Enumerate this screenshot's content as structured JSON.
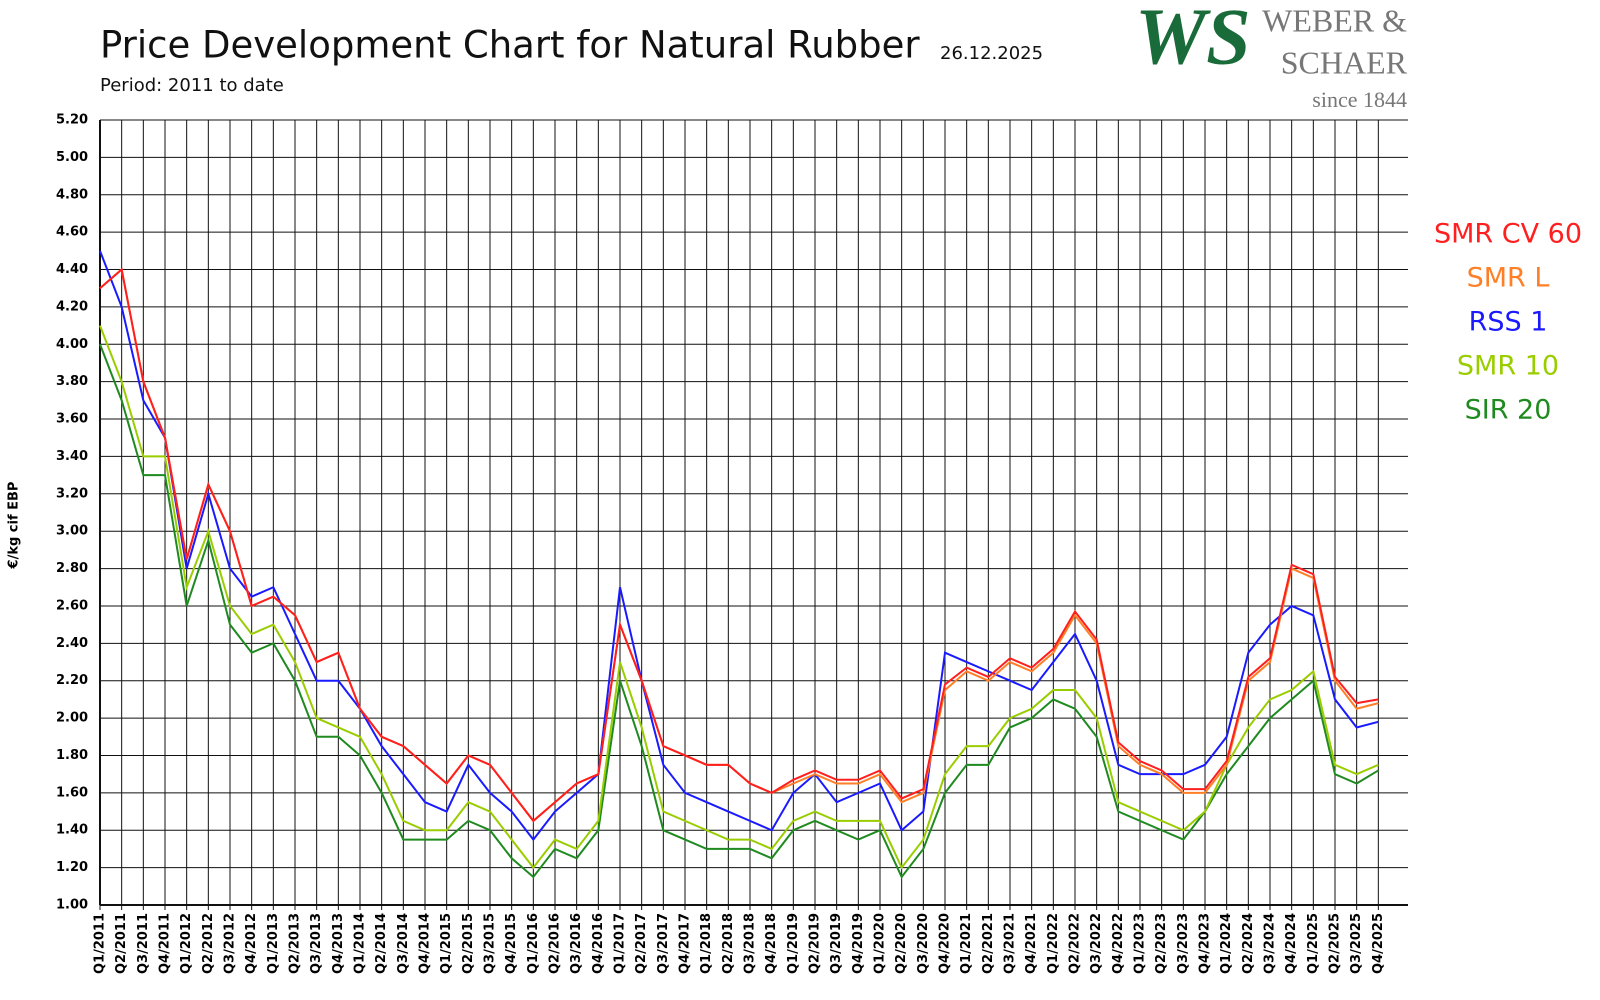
{
  "chart_data": {
    "type": "line",
    "title": "Price Development Chart for Natural Rubber",
    "date": "26.12.2025",
    "subtitle": "Period: 2011 to date",
    "y_label": "€/kg cif EBP",
    "logo": {
      "mark": "WS",
      "line1": "WEBER &",
      "line2": "SCHAER",
      "since": "since 1844"
    },
    "categories": [
      "Q1/2011",
      "Q2/2011",
      "Q3/2011",
      "Q4/2011",
      "Q1/2012",
      "Q2/2012",
      "Q3/2012",
      "Q4/2012",
      "Q1/2013",
      "Q2/2013",
      "Q3/2013",
      "Q4/2013",
      "Q1/2014",
      "Q2/2014",
      "Q3/2014",
      "Q4/2014",
      "Q1/2015",
      "Q2/2015",
      "Q3/2015",
      "Q4/2015",
      "Q1/2016",
      "Q2/2016",
      "Q3/2016",
      "Q4/2016",
      "Q1/2017",
      "Q2/2017",
      "Q3/2017",
      "Q4/2017",
      "Q1/2018",
      "Q2/2018",
      "Q3/2018",
      "Q4/2018",
      "Q1/2019",
      "Q2/2019",
      "Q3/2019",
      "Q4/2019",
      "Q1/2020",
      "Q2/2020",
      "Q3/2020",
      "Q4/2020",
      "Q1/2021",
      "Q2/2021",
      "Q3/2021",
      "Q4/2021",
      "Q1/2022",
      "Q2/2022",
      "Q3/2022",
      "Q4/2022",
      "Q1/2023",
      "Q2/2023",
      "Q3/2023",
      "Q4/2023",
      "Q1/2024",
      "Q2/2024",
      "Q3/2024",
      "Q4/2024",
      "Q1/2025",
      "Q2/2025",
      "Q3/2025",
      "Q4/2025"
    ],
    "series": [
      {
        "name": "SMR CV 60",
        "color": "#ff1f1f",
        "values": [
          4.3,
          4.4,
          3.8,
          3.5,
          2.85,
          3.25,
          3.0,
          2.6,
          2.65,
          2.55,
          2.3,
          2.35,
          2.05,
          1.9,
          1.85,
          1.75,
          1.65,
          1.8,
          1.75,
          1.6,
          1.45,
          1.55,
          1.65,
          1.7,
          2.5,
          2.2,
          1.85,
          1.8,
          1.75,
          1.75,
          1.65,
          1.6,
          1.67,
          1.72,
          1.67,
          1.67,
          1.72,
          1.57,
          1.62,
          2.18,
          2.27,
          2.22,
          2.32,
          2.27,
          2.37,
          2.57,
          2.42,
          1.87,
          1.77,
          1.72,
          1.62,
          1.62,
          1.77,
          2.22,
          2.32,
          2.82,
          2.77,
          2.22,
          2.08,
          2.1
        ]
      },
      {
        "name": "SMR L",
        "color": "#ff7f27",
        "values": [
          4.3,
          4.4,
          3.8,
          3.5,
          2.85,
          3.25,
          3.0,
          2.6,
          2.65,
          2.55,
          2.3,
          2.35,
          2.05,
          1.9,
          1.85,
          1.75,
          1.65,
          1.8,
          1.75,
          1.6,
          1.45,
          1.55,
          1.65,
          1.7,
          2.5,
          2.2,
          1.85,
          1.8,
          1.75,
          1.75,
          1.65,
          1.6,
          1.65,
          1.7,
          1.65,
          1.65,
          1.7,
          1.55,
          1.6,
          2.15,
          2.25,
          2.2,
          2.3,
          2.25,
          2.35,
          2.55,
          2.4,
          1.85,
          1.75,
          1.7,
          1.6,
          1.6,
          1.75,
          2.2,
          2.3,
          2.8,
          2.75,
          2.2,
          2.05,
          2.08
        ]
      },
      {
        "name": "RSS 1",
        "color": "#1a1aff",
        "values": [
          4.5,
          4.2,
          3.7,
          3.5,
          2.8,
          3.2,
          2.8,
          2.65,
          2.7,
          2.45,
          2.2,
          2.2,
          2.05,
          1.85,
          1.7,
          1.55,
          1.5,
          1.75,
          1.6,
          1.5,
          1.35,
          1.5,
          1.6,
          1.7,
          2.7,
          2.2,
          1.75,
          1.6,
          1.55,
          1.5,
          1.45,
          1.4,
          1.6,
          1.7,
          1.55,
          1.6,
          1.65,
          1.4,
          1.5,
          2.35,
          2.3,
          2.25,
          2.2,
          2.15,
          2.3,
          2.45,
          2.2,
          1.75,
          1.7,
          1.7,
          1.7,
          1.75,
          1.9,
          2.35,
          2.5,
          2.6,
          2.55,
          2.1,
          1.95,
          1.98
        ]
      },
      {
        "name": "SMR 10",
        "color": "#9acd00",
        "values": [
          4.1,
          3.8,
          3.4,
          3.4,
          2.7,
          3.0,
          2.6,
          2.45,
          2.5,
          2.3,
          2.0,
          1.95,
          1.9,
          1.7,
          1.45,
          1.4,
          1.4,
          1.55,
          1.5,
          1.35,
          1.2,
          1.35,
          1.3,
          1.45,
          2.3,
          1.95,
          1.5,
          1.45,
          1.4,
          1.35,
          1.35,
          1.3,
          1.45,
          1.5,
          1.45,
          1.45,
          1.45,
          1.2,
          1.35,
          1.7,
          1.85,
          1.85,
          2.0,
          2.05,
          2.15,
          2.15,
          2.0,
          1.55,
          1.5,
          1.45,
          1.4,
          1.5,
          1.75,
          1.95,
          2.1,
          2.15,
          2.25,
          1.75,
          1.7,
          1.75
        ]
      },
      {
        "name": "SIR 20",
        "color": "#1f8a1f",
        "values": [
          4.0,
          3.7,
          3.3,
          3.3,
          2.6,
          2.95,
          2.5,
          2.35,
          2.4,
          2.2,
          1.9,
          1.9,
          1.8,
          1.6,
          1.35,
          1.35,
          1.35,
          1.45,
          1.4,
          1.25,
          1.15,
          1.3,
          1.25,
          1.4,
          2.2,
          1.85,
          1.4,
          1.35,
          1.3,
          1.3,
          1.3,
          1.25,
          1.4,
          1.45,
          1.4,
          1.35,
          1.4,
          1.15,
          1.3,
          1.6,
          1.75,
          1.75,
          1.95,
          2.0,
          2.1,
          2.05,
          1.9,
          1.5,
          1.45,
          1.4,
          1.35,
          1.5,
          1.7,
          1.85,
          2.0,
          2.1,
          2.2,
          1.7,
          1.65,
          1.72
        ]
      }
    ],
    "ylim": [
      1.0,
      5.2
    ],
    "yticks": [
      {
        "value": 1.0,
        "label": "1.00"
      },
      {
        "value": 1.2,
        "label": "1.20"
      },
      {
        "value": 1.4,
        "label": "1.40"
      },
      {
        "value": 1.6,
        "label": "1.60"
      },
      {
        "value": 1.8,
        "label": "1.80"
      },
      {
        "value": 2.0,
        "label": "2.00"
      },
      {
        "value": 2.2,
        "label": "2.20"
      },
      {
        "value": 2.4,
        "label": "2.40"
      },
      {
        "value": 2.6,
        "label": "2.60"
      },
      {
        "value": 2.8,
        "label": "2.80"
      },
      {
        "value": 3.0,
        "label": "3.00"
      },
      {
        "value": 3.2,
        "label": "3.20"
      },
      {
        "value": 3.4,
        "label": "3.40"
      },
      {
        "value": 3.6,
        "label": "3.60"
      },
      {
        "value": 3.8,
        "label": "3.80"
      },
      {
        "value": 4.0,
        "label": "4.00"
      },
      {
        "value": 4.2,
        "label": "4.20"
      },
      {
        "value": 4.4,
        "label": "4.40"
      },
      {
        "value": 4.6,
        "label": "4.60"
      },
      {
        "value": 4.8,
        "label": "4.80"
      },
      {
        "value": 5.0,
        "label": "5.00"
      },
      {
        "value": 5.2,
        "label": "5.20"
      }
    ],
    "grid": true
  }
}
